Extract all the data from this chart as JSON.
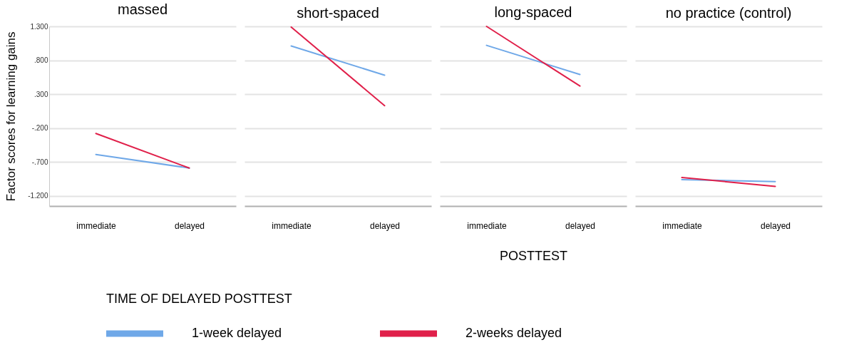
{
  "chart_data": [
    {
      "type": "line",
      "title": "massed",
      "ylabel": "Factor scores for learning gains",
      "legend_title": "TIME OF DELAYED POSTTEST",
      "legend": "bottom",
      "grid": "y",
      "categories": [
        "immediate",
        "delayed"
      ],
      "ylim": [
        -1.35,
        1.3
      ],
      "yticks": [
        {
          "value": 1.3,
          "label": "1.300"
        },
        {
          "value": 0.8,
          "label": ".800"
        },
        {
          "value": 0.3,
          "label": ".300"
        },
        {
          "value": -0.2,
          "label": "-.200"
        },
        {
          "value": -0.7,
          "label": "-.700"
        },
        {
          "value": -1.2,
          "label": "-1.200"
        }
      ],
      "series": [
        {
          "name": "1-week delayed",
          "color": "#6fa8e8",
          "values": [
            -0.59,
            -0.79
          ]
        },
        {
          "name": "2-weeks delayed",
          "color": "#e0204a",
          "values": [
            -0.28,
            -0.79
          ]
        }
      ]
    },
    {
      "type": "line",
      "title": "short-spaced",
      "tick_labels": "x",
      "grid": "y",
      "categories": [
        "immediate",
        "delayed"
      ],
      "ylim": [
        -1.35,
        1.3
      ],
      "yticks": [
        {
          "value": 1.3,
          "label": null
        },
        {
          "value": 0.8,
          "label": null
        },
        {
          "value": 0.3,
          "label": null
        },
        {
          "value": -0.2,
          "label": null
        },
        {
          "value": -0.7,
          "label": null
        },
        {
          "value": -1.2,
          "label": null
        }
      ],
      "series": [
        {
          "name": "1-week delayed",
          "color": "#6fa8e8",
          "values": [
            1.01,
            0.58
          ]
        },
        {
          "name": "2-weeks delayed",
          "color": "#e0204a",
          "values": [
            1.29,
            0.13
          ]
        }
      ]
    },
    {
      "type": "line",
      "title": "long-spaced",
      "xlabel": "POSTTEST",
      "tick_labels": "x",
      "grid": "y",
      "categories": [
        "immediate",
        "delayed"
      ],
      "ylim": [
        -1.35,
        1.3
      ],
      "yticks": [
        {
          "value": 1.3,
          "label": null
        },
        {
          "value": 0.8,
          "label": null
        },
        {
          "value": 0.3,
          "label": null
        },
        {
          "value": -0.2,
          "label": null
        },
        {
          "value": -0.7,
          "label": null
        },
        {
          "value": -1.2,
          "label": null
        }
      ],
      "series": [
        {
          "name": "1-week delayed",
          "color": "#6fa8e8",
          "values": [
            1.02,
            0.59
          ]
        },
        {
          "name": "2-weeks delayed",
          "color": "#e0204a",
          "values": [
            1.3,
            0.42
          ]
        }
      ]
    },
    {
      "type": "line",
      "title": "no practice (control)",
      "tick_labels": "x",
      "grid": "y",
      "categories": [
        "immediate",
        "delayed"
      ],
      "ylim": [
        -1.35,
        1.3
      ],
      "yticks": [
        {
          "value": 1.3,
          "label": null
        },
        {
          "value": 0.8,
          "label": null
        },
        {
          "value": 0.3,
          "label": null
        },
        {
          "value": -0.2,
          "label": null
        },
        {
          "value": -0.7,
          "label": null
        },
        {
          "value": -1.2,
          "label": null
        }
      ],
      "series": [
        {
          "name": "1-week delayed",
          "color": "#6fa8e8",
          "values": [
            -0.96,
            -0.99
          ]
        },
        {
          "name": "2-weeks delayed",
          "color": "#e0204a",
          "values": [
            -0.93,
            -1.06
          ]
        }
      ]
    }
  ]
}
